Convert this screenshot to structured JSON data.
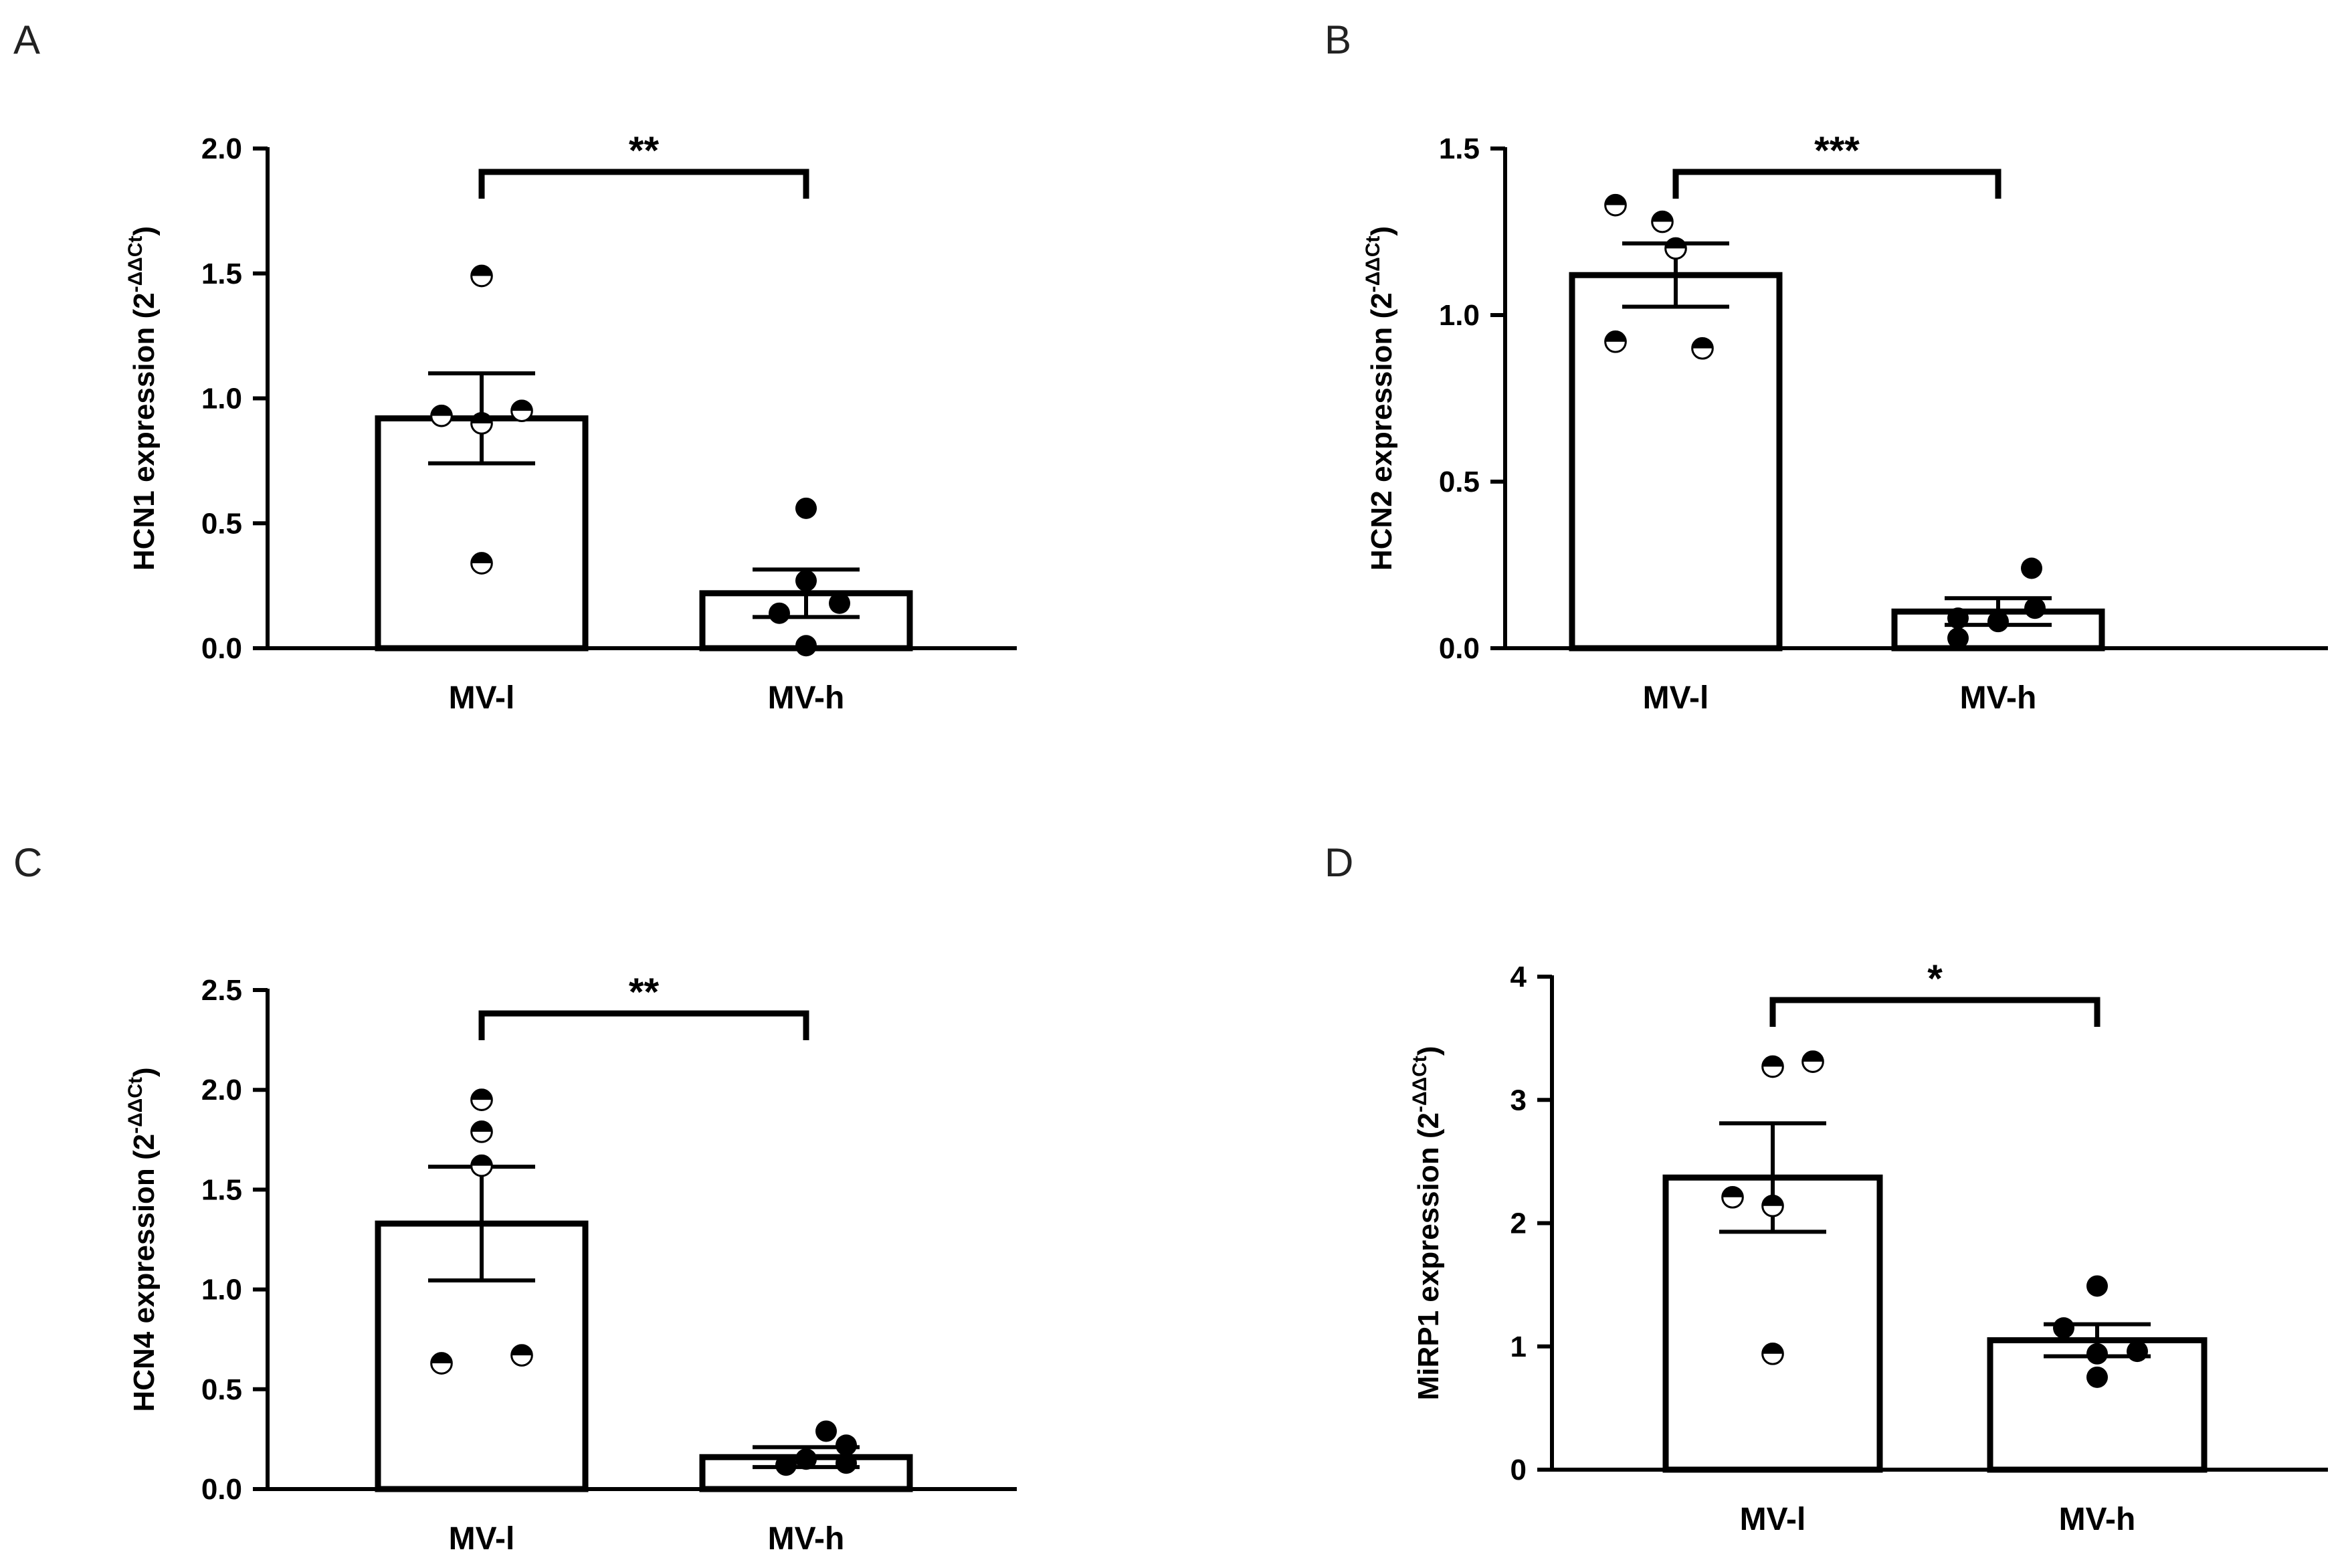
{
  "chart_data": [
    {
      "type": "bar",
      "panel": "A",
      "ylabel": "HCN1 expression (2",
      "ylabel_sup": "-ΔΔCt",
      "ylabel_close": ")",
      "categories": [
        "MV-l",
        "MV-h"
      ],
      "values": [
        0.92,
        0.22
      ],
      "sem": [
        0.18,
        0.095
      ],
      "points": [
        [
          1.49,
          0.93,
          0.95,
          0.9,
          0.34
        ],
        [
          0.56,
          0.27,
          0.18,
          0.14,
          0.01
        ]
      ],
      "ylim": [
        0,
        2.0
      ],
      "yticks": [
        "0.0",
        "0.5",
        "1.0",
        "1.5",
        "2.0"
      ],
      "ytick_values": [
        0,
        0.5,
        1.0,
        1.5,
        2.0
      ],
      "significance": "**"
    },
    {
      "type": "bar",
      "panel": "B",
      "ylabel": "HCN2 expression (2",
      "ylabel_sup": "-ΔΔCt",
      "ylabel_close": ")",
      "categories": [
        "MV-l",
        "MV-h"
      ],
      "values": [
        1.12,
        0.11
      ],
      "sem": [
        0.095,
        0.04
      ],
      "points": [
        [
          1.33,
          1.28,
          1.2,
          0.92,
          0.9
        ],
        [
          0.24,
          0.12,
          0.09,
          0.08,
          0.03
        ]
      ],
      "ylim": [
        0,
        1.5
      ],
      "yticks": [
        "0.0",
        "0.5",
        "1.0",
        "1.5"
      ],
      "ytick_values": [
        0,
        0.5,
        1.0,
        1.5
      ],
      "significance": "***"
    },
    {
      "type": "bar",
      "panel": "C",
      "ylabel": "HCN4 expression (2",
      "ylabel_sup": "-ΔΔCt",
      "ylabel_close": ")",
      "categories": [
        "MV-l",
        "MV-h"
      ],
      "values": [
        1.33,
        0.16
      ],
      "sem": [
        0.285,
        0.05
      ],
      "points": [
        [
          1.95,
          1.79,
          1.62,
          0.67,
          0.63
        ],
        [
          0.29,
          0.22,
          0.15,
          0.12,
          0.13
        ]
      ],
      "ylim": [
        0,
        2.5
      ],
      "yticks": [
        "0.0",
        "0.5",
        "1.0",
        "1.5",
        "2.0",
        "2.5"
      ],
      "ytick_values": [
        0,
        0.5,
        1.0,
        1.5,
        2.0,
        2.5
      ],
      "significance": "**"
    },
    {
      "type": "bar",
      "panel": "D",
      "ylabel": "MiRP1 expression (2",
      "ylabel_sup": "-ΔΔCt",
      "ylabel_close": ")",
      "categories": [
        "MV-l",
        "MV-h"
      ],
      "values": [
        2.37,
        1.05
      ],
      "sem": [
        0.44,
        0.13
      ],
      "points": [
        [
          3.31,
          3.27,
          2.21,
          2.14,
          0.94
        ],
        [
          1.49,
          1.15,
          0.96,
          0.94,
          0.75
        ]
      ],
      "ylim": [
        0,
        4
      ],
      "yticks": [
        "0",
        "1",
        "2",
        "3",
        "4"
      ],
      "ytick_values": [
        0,
        1,
        2,
        3,
        4
      ],
      "significance": "*"
    }
  ],
  "legend_styles": {
    "MV-l": "half-filled circle",
    "MV-h": "filled circle"
  },
  "colors": {
    "ink": "#000000",
    "background": "#ffffff"
  }
}
